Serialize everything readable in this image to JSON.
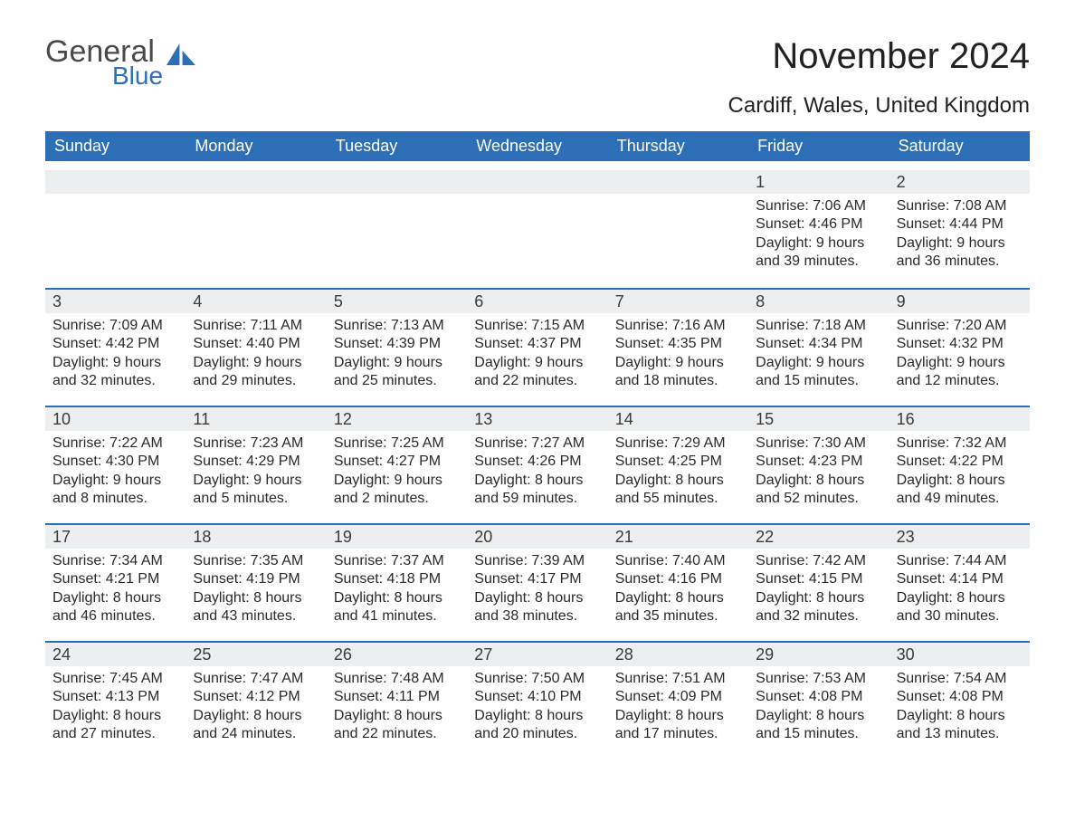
{
  "logo": {
    "text1": "General",
    "text2": "Blue",
    "icon_color": "#2d6fb6"
  },
  "title": "November 2024",
  "location": "Cardiff, Wales, United Kingdom",
  "colors": {
    "header_bg": "#2d6fb6",
    "header_text": "#ffffff",
    "daynum_bg": "#eceeef",
    "daynum_border": "#2d6fb6",
    "body_bg": "#ffffff",
    "text": "#222222"
  },
  "day_headers": [
    "Sunday",
    "Monday",
    "Tuesday",
    "Wednesday",
    "Thursday",
    "Friday",
    "Saturday"
  ],
  "weeks": [
    [
      {
        "empty": true
      },
      {
        "empty": true
      },
      {
        "empty": true
      },
      {
        "empty": true
      },
      {
        "empty": true
      },
      {
        "num": "1",
        "sunrise": "Sunrise: 7:06 AM",
        "sunset": "Sunset: 4:46 PM",
        "daylight": "Daylight: 9 hours and 39 minutes."
      },
      {
        "num": "2",
        "sunrise": "Sunrise: 7:08 AM",
        "sunset": "Sunset: 4:44 PM",
        "daylight": "Daylight: 9 hours and 36 minutes."
      }
    ],
    [
      {
        "num": "3",
        "sunrise": "Sunrise: 7:09 AM",
        "sunset": "Sunset: 4:42 PM",
        "daylight": "Daylight: 9 hours and 32 minutes."
      },
      {
        "num": "4",
        "sunrise": "Sunrise: 7:11 AM",
        "sunset": "Sunset: 4:40 PM",
        "daylight": "Daylight: 9 hours and 29 minutes."
      },
      {
        "num": "5",
        "sunrise": "Sunrise: 7:13 AM",
        "sunset": "Sunset: 4:39 PM",
        "daylight": "Daylight: 9 hours and 25 minutes."
      },
      {
        "num": "6",
        "sunrise": "Sunrise: 7:15 AM",
        "sunset": "Sunset: 4:37 PM",
        "daylight": "Daylight: 9 hours and 22 minutes."
      },
      {
        "num": "7",
        "sunrise": "Sunrise: 7:16 AM",
        "sunset": "Sunset: 4:35 PM",
        "daylight": "Daylight: 9 hours and 18 minutes."
      },
      {
        "num": "8",
        "sunrise": "Sunrise: 7:18 AM",
        "sunset": "Sunset: 4:34 PM",
        "daylight": "Daylight: 9 hours and 15 minutes."
      },
      {
        "num": "9",
        "sunrise": "Sunrise: 7:20 AM",
        "sunset": "Sunset: 4:32 PM",
        "daylight": "Daylight: 9 hours and 12 minutes."
      }
    ],
    [
      {
        "num": "10",
        "sunrise": "Sunrise: 7:22 AM",
        "sunset": "Sunset: 4:30 PM",
        "daylight": "Daylight: 9 hours and 8 minutes."
      },
      {
        "num": "11",
        "sunrise": "Sunrise: 7:23 AM",
        "sunset": "Sunset: 4:29 PM",
        "daylight": "Daylight: 9 hours and 5 minutes."
      },
      {
        "num": "12",
        "sunrise": "Sunrise: 7:25 AM",
        "sunset": "Sunset: 4:27 PM",
        "daylight": "Daylight: 9 hours and 2 minutes."
      },
      {
        "num": "13",
        "sunrise": "Sunrise: 7:27 AM",
        "sunset": "Sunset: 4:26 PM",
        "daylight": "Daylight: 8 hours and 59 minutes."
      },
      {
        "num": "14",
        "sunrise": "Sunrise: 7:29 AM",
        "sunset": "Sunset: 4:25 PM",
        "daylight": "Daylight: 8 hours and 55 minutes."
      },
      {
        "num": "15",
        "sunrise": "Sunrise: 7:30 AM",
        "sunset": "Sunset: 4:23 PM",
        "daylight": "Daylight: 8 hours and 52 minutes."
      },
      {
        "num": "16",
        "sunrise": "Sunrise: 7:32 AM",
        "sunset": "Sunset: 4:22 PM",
        "daylight": "Daylight: 8 hours and 49 minutes."
      }
    ],
    [
      {
        "num": "17",
        "sunrise": "Sunrise: 7:34 AM",
        "sunset": "Sunset: 4:21 PM",
        "daylight": "Daylight: 8 hours and 46 minutes."
      },
      {
        "num": "18",
        "sunrise": "Sunrise: 7:35 AM",
        "sunset": "Sunset: 4:19 PM",
        "daylight": "Daylight: 8 hours and 43 minutes."
      },
      {
        "num": "19",
        "sunrise": "Sunrise: 7:37 AM",
        "sunset": "Sunset: 4:18 PM",
        "daylight": "Daylight: 8 hours and 41 minutes."
      },
      {
        "num": "20",
        "sunrise": "Sunrise: 7:39 AM",
        "sunset": "Sunset: 4:17 PM",
        "daylight": "Daylight: 8 hours and 38 minutes."
      },
      {
        "num": "21",
        "sunrise": "Sunrise: 7:40 AM",
        "sunset": "Sunset: 4:16 PM",
        "daylight": "Daylight: 8 hours and 35 minutes."
      },
      {
        "num": "22",
        "sunrise": "Sunrise: 7:42 AM",
        "sunset": "Sunset: 4:15 PM",
        "daylight": "Daylight: 8 hours and 32 minutes."
      },
      {
        "num": "23",
        "sunrise": "Sunrise: 7:44 AM",
        "sunset": "Sunset: 4:14 PM",
        "daylight": "Daylight: 8 hours and 30 minutes."
      }
    ],
    [
      {
        "num": "24",
        "sunrise": "Sunrise: 7:45 AM",
        "sunset": "Sunset: 4:13 PM",
        "daylight": "Daylight: 8 hours and 27 minutes."
      },
      {
        "num": "25",
        "sunrise": "Sunrise: 7:47 AM",
        "sunset": "Sunset: 4:12 PM",
        "daylight": "Daylight: 8 hours and 24 minutes."
      },
      {
        "num": "26",
        "sunrise": "Sunrise: 7:48 AM",
        "sunset": "Sunset: 4:11 PM",
        "daylight": "Daylight: 8 hours and 22 minutes."
      },
      {
        "num": "27",
        "sunrise": "Sunrise: 7:50 AM",
        "sunset": "Sunset: 4:10 PM",
        "daylight": "Daylight: 8 hours and 20 minutes."
      },
      {
        "num": "28",
        "sunrise": "Sunrise: 7:51 AM",
        "sunset": "Sunset: 4:09 PM",
        "daylight": "Daylight: 8 hours and 17 minutes."
      },
      {
        "num": "29",
        "sunrise": "Sunrise: 7:53 AM",
        "sunset": "Sunset: 4:08 PM",
        "daylight": "Daylight: 8 hours and 15 minutes."
      },
      {
        "num": "30",
        "sunrise": "Sunrise: 7:54 AM",
        "sunset": "Sunset: 4:08 PM",
        "daylight": "Daylight: 8 hours and 13 minutes."
      }
    ]
  ]
}
